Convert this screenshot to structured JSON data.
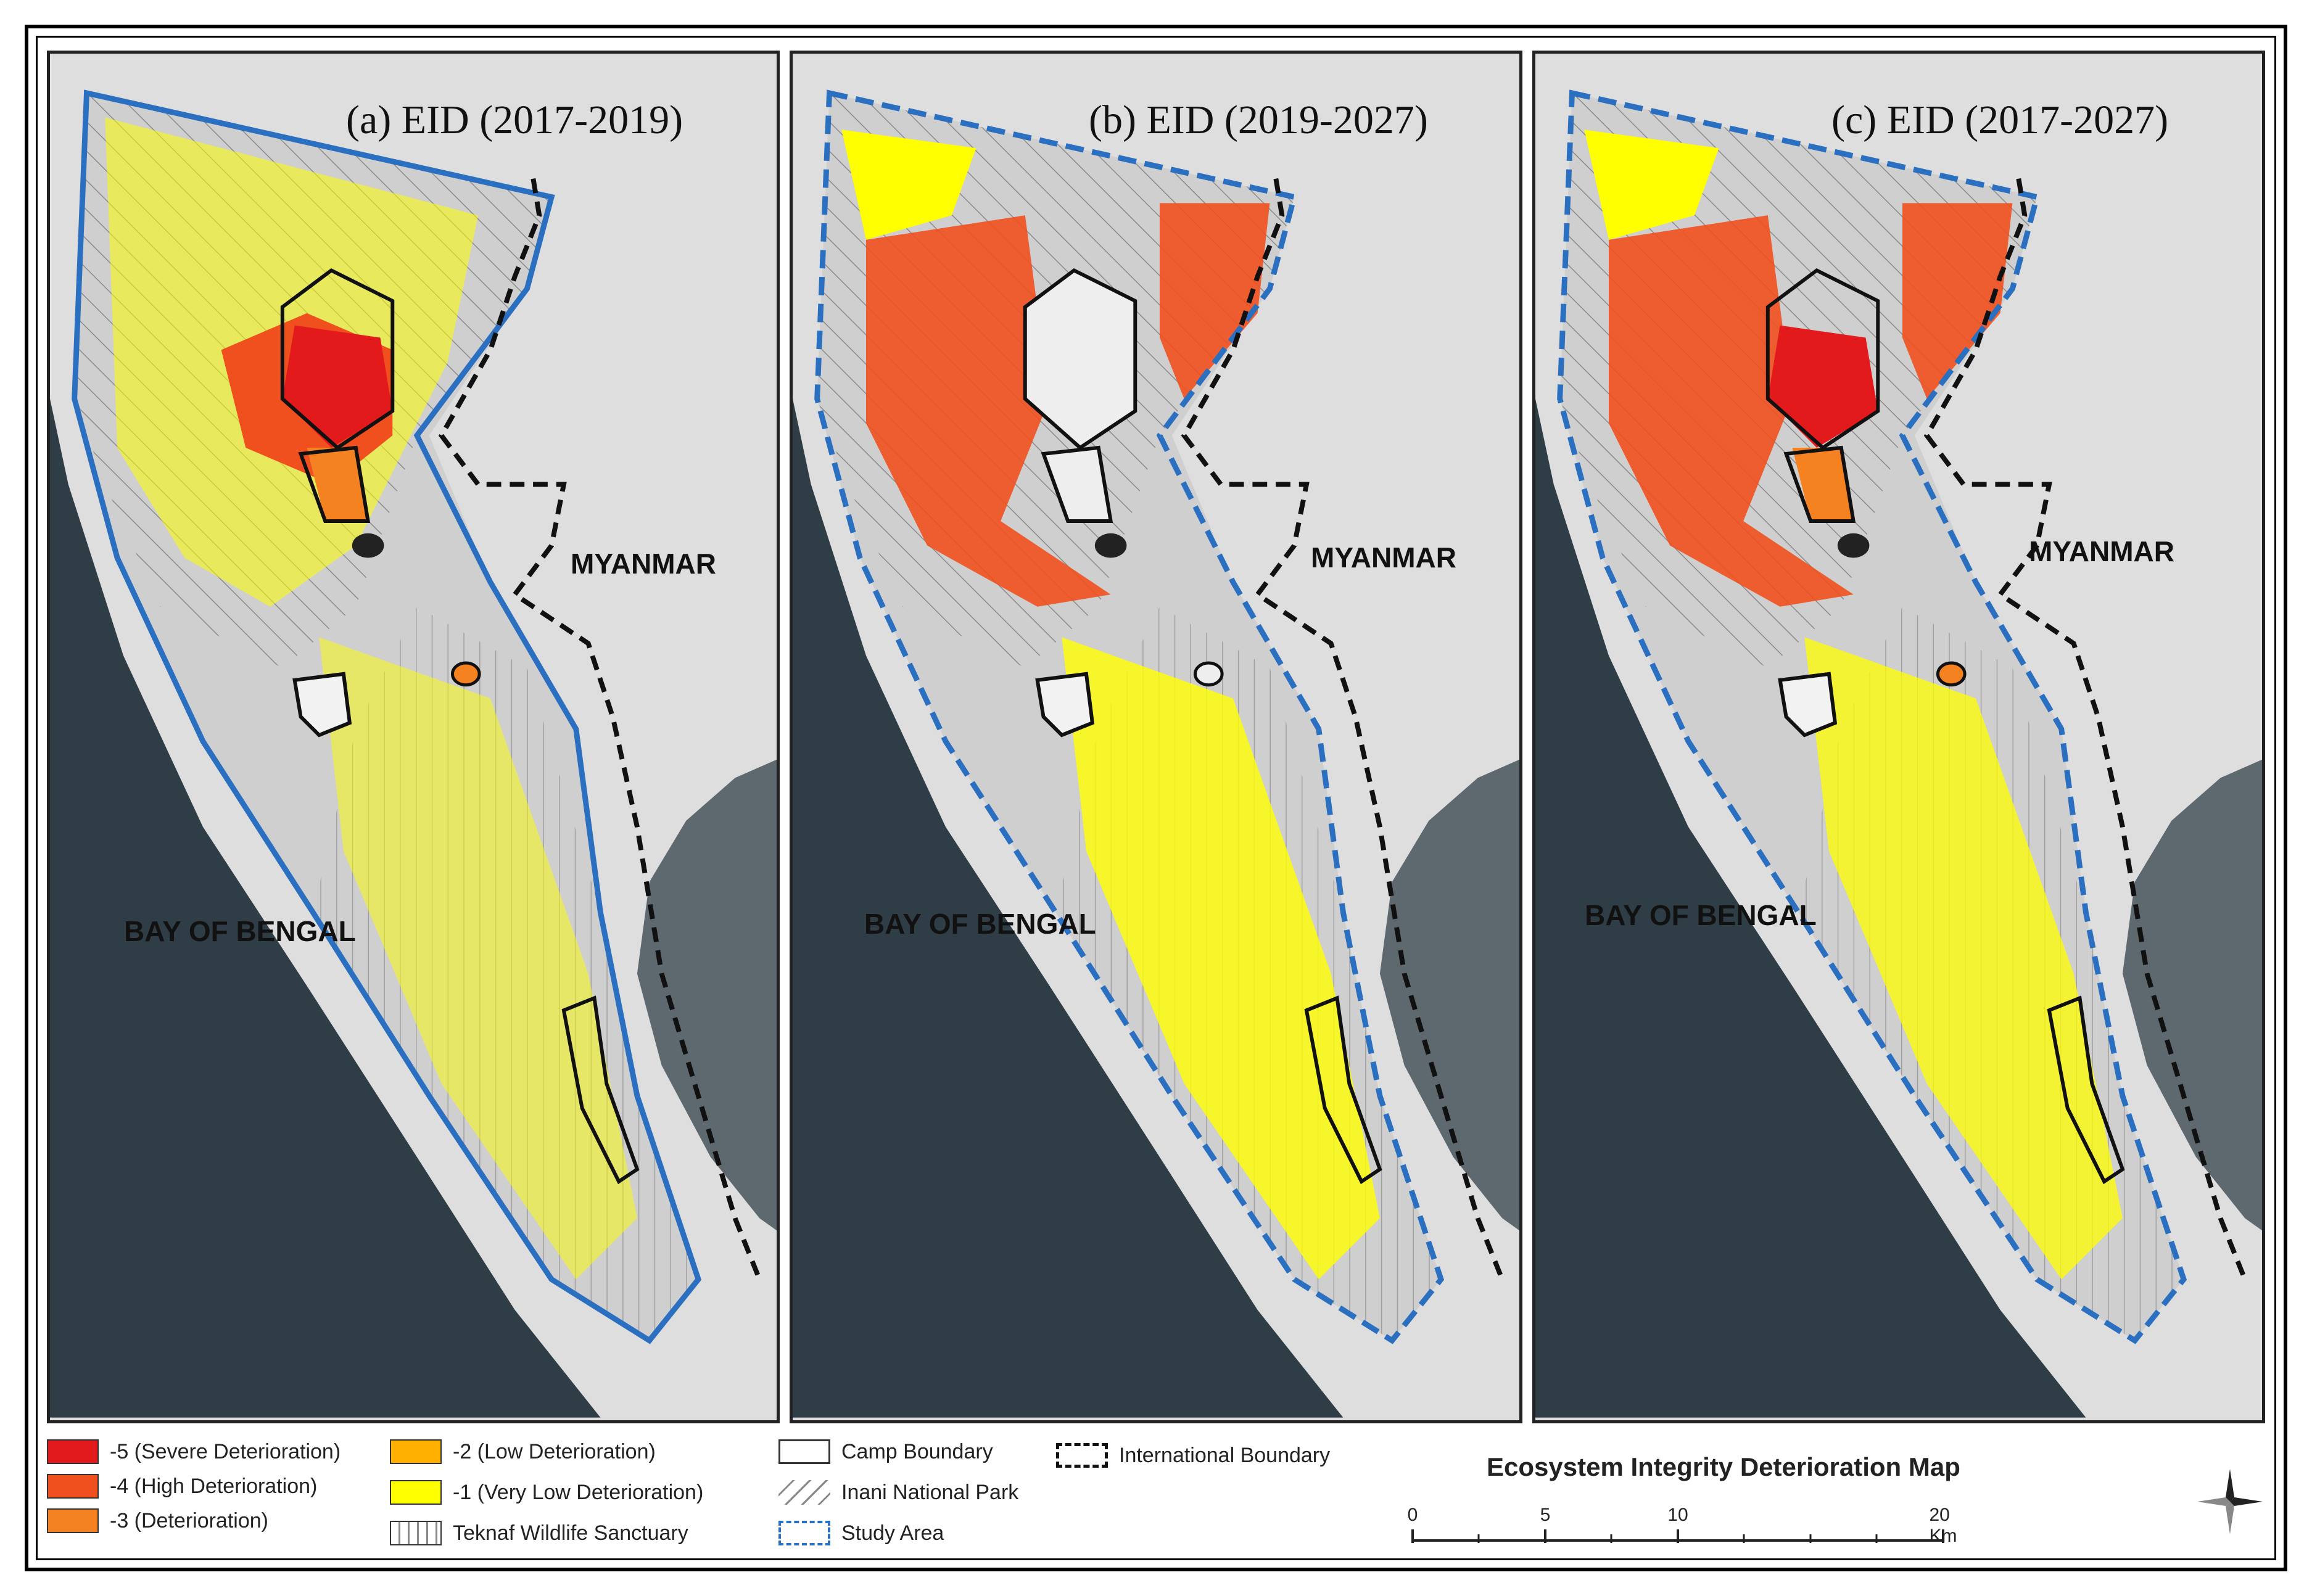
{
  "panels": [
    {
      "title": "(a) EID (2017-2019)",
      "myanmar": "MYANMAR",
      "bay": "BAY OF BENGAL"
    },
    {
      "title": "(b) EID (2019-2027)",
      "myanmar": "MYANMAR",
      "bay": "BAY OF BENGAL"
    },
    {
      "title": "(c) EID (2017-2027)",
      "myanmar": "MYANMAR",
      "bay": "BAY OF BENGAL"
    }
  ],
  "legend": {
    "classes": [
      {
        "label": "-5 (Severe Deterioration)",
        "color": "#e31a1c"
      },
      {
        "label": "-4 (High Deterioration)",
        "color": "#f0501e"
      },
      {
        "label": "-3 (Deterioration)",
        "color": "#f58220"
      },
      {
        "label": "-2 (Low Deterioration)",
        "color": "#ffb000"
      },
      {
        "label": "-1 (Very Low Deterioration)",
        "color": "#ffff00"
      }
    ],
    "teknaf": "Teknaf Wildlife Sanctuary",
    "camp": "Camp Boundary",
    "inani": "Inani National Park",
    "study": "Study Area",
    "international": "International Boundary"
  },
  "map_title": "Ecosystem Integrity Deterioration Map",
  "scale": {
    "ticks": [
      "0",
      "5",
      "10",
      "20 Km"
    ]
  },
  "colors": {
    "sea": "#2f3d46",
    "land": "#dedede",
    "study_area": "#2a6fc0",
    "border": "#111111"
  }
}
